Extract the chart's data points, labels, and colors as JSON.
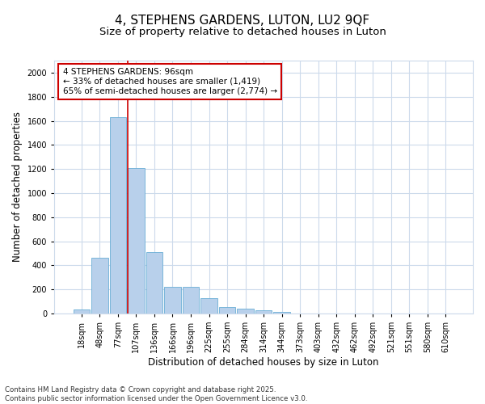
{
  "title_line1": "4, STEPHENS GARDENS, LUTON, LU2 9QF",
  "title_line2": "Size of property relative to detached houses in Luton",
  "xlabel": "Distribution of detached houses by size in Luton",
  "ylabel": "Number of detached properties",
  "categories": [
    "18sqm",
    "48sqm",
    "77sqm",
    "107sqm",
    "136sqm",
    "166sqm",
    "196sqm",
    "225sqm",
    "255sqm",
    "284sqm",
    "314sqm",
    "344sqm",
    "373sqm",
    "403sqm",
    "432sqm",
    "462sqm",
    "492sqm",
    "521sqm",
    "551sqm",
    "580sqm",
    "610sqm"
  ],
  "values": [
    35,
    460,
    1630,
    1210,
    510,
    220,
    220,
    125,
    50,
    40,
    25,
    15,
    0,
    0,
    0,
    0,
    0,
    0,
    0,
    0,
    0
  ],
  "bar_color": "#b8d0eb",
  "bar_edge_color": "#6aaed6",
  "background_color": "#ffffff",
  "grid_color": "#ccdaeb",
  "annotation_text_line1": "4 STEPHENS GARDENS: 96sqm",
  "annotation_text_line2": "← 33% of detached houses are smaller (1,419)",
  "annotation_text_line3": "65% of semi-detached houses are larger (2,774) →",
  "red_line_x": 2.55,
  "ylim_max": 2100,
  "yticks": [
    0,
    200,
    400,
    600,
    800,
    1000,
    1200,
    1400,
    1600,
    1800,
    2000
  ],
  "footer_line1": "Contains HM Land Registry data © Crown copyright and database right 2025.",
  "footer_line2": "Contains public sector information licensed under the Open Government Licence v3.0.",
  "red_line_color": "#cc0000",
  "annotation_box_edge_color": "#cc0000",
  "title1_fontsize": 11,
  "title2_fontsize": 9.5,
  "axis_label_fontsize": 8.5,
  "tick_fontsize": 7,
  "annotation_fontsize": 7.5,
  "footer_fontsize": 6.2
}
